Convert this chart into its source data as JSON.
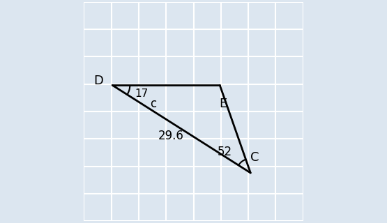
{
  "vertices": {
    "D": [
      0.13,
      0.62
    ],
    "E": [
      0.62,
      0.62
    ],
    "C": [
      0.76,
      0.22
    ]
  },
  "angle_label_D": "17",
  "angle_label_C": "52",
  "side_DC_label": "29.6",
  "side_DE_label": "c",
  "bg_color": "#dce6f0",
  "triangle_color": "#000000",
  "text_color": "#000000",
  "fontsize": 13,
  "linewidth": 2.0,
  "grid_color": "#ffffff",
  "grid_lw": 1.5
}
